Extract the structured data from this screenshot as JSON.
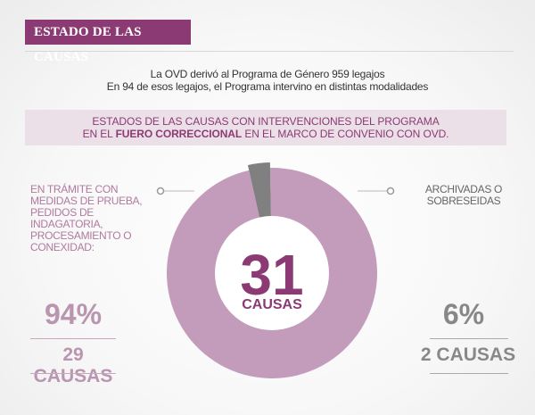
{
  "header": {
    "title": "ESTADO DE LAS CAUSAS"
  },
  "intro": {
    "line1": "La OVD derivó al Programa de Género 959 legajos",
    "line2": "En 94 de esos legajos,  el Programa intervino en distintas modalidades"
  },
  "subtitle": {
    "line1": "ESTADOS DE LAS CAUSAS CON INTERVENCIONES DEL PROGRAMA",
    "line2_pre": "EN EL ",
    "line2_bold": "FUERO CORRECCIONAL",
    "line2_post": " EN EL MARCO DE CONVENIO CON OVD."
  },
  "left": {
    "label": "EN TRÁMITE CON MEDIDAS DE PRUEBA, PEDIDOS DE INDAGATORIA, PROCESAMIENTO O CONEXIDAD:",
    "percent": "94%",
    "count": "29 CAUSAS"
  },
  "right": {
    "label": "ARCHIVADAS O SOBRESEIDAS",
    "percent": "6%",
    "count": "2 CAUSAS"
  },
  "center": {
    "total": "31",
    "unit": "CAUSAS"
  },
  "colors": {
    "accent": "#8b3a73",
    "ring_main": "#c39cbb",
    "ring_small": "#808080",
    "total_text": "#8b3a73"
  },
  "chart_data": {
    "type": "pie",
    "categories": [
      "EN TRÁMITE",
      "ARCHIVADAS O SOBRESEIDAS"
    ],
    "values": [
      29,
      2
    ],
    "percentages": [
      94,
      6
    ],
    "total": 31
  }
}
